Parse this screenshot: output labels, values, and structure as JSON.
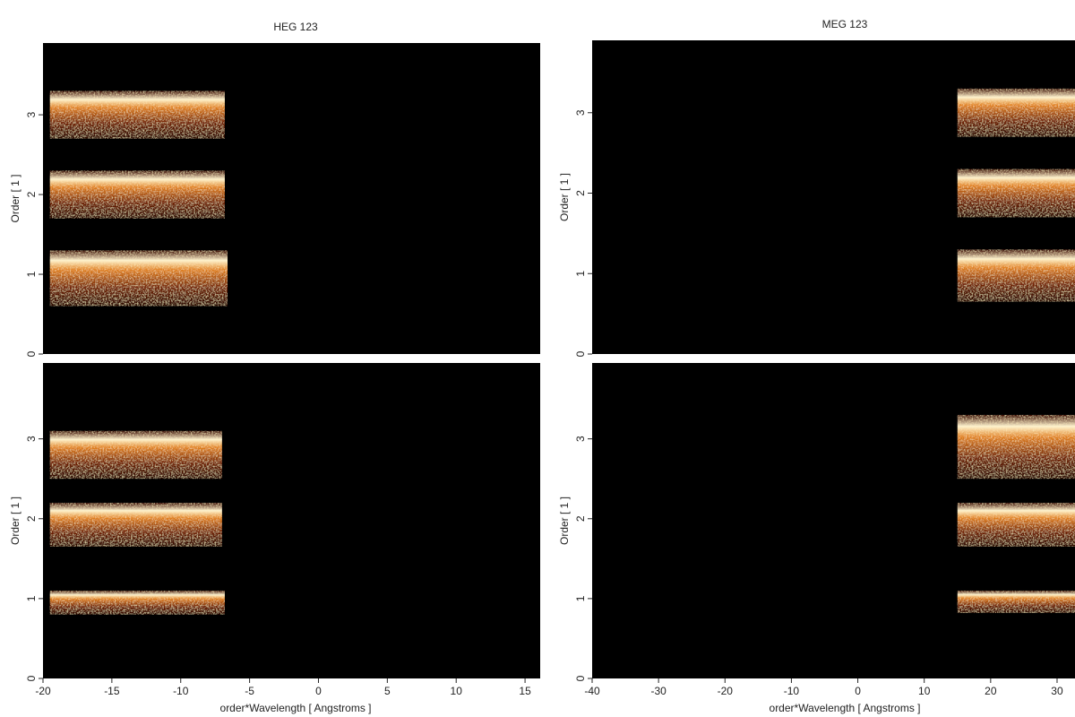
{
  "chart_data": [
    {
      "type": "image",
      "title": "HEG 123",
      "ylabel": "Order [ 1 ]",
      "xlim": [
        -20,
        16.1
      ],
      "ylim": [
        0,
        3.9
      ],
      "yticks": [
        0,
        1,
        2,
        3
      ],
      "regions": [
        {
          "x": [
            -19.5,
            -6.8
          ],
          "y": [
            2.7,
            3.3
          ]
        },
        {
          "x": [
            -19.5,
            -6.8
          ],
          "y": [
            1.7,
            2.3
          ]
        },
        {
          "x": [
            -19.5,
            -6.6
          ],
          "y": [
            0.6,
            1.3
          ]
        }
      ]
    },
    {
      "type": "image",
      "title": "MEG 123",
      "ylabel": "Order [ 1 ]",
      "xlim": [
        -40,
        32.7
      ],
      "ylim": [
        0,
        3.9
      ],
      "yticks": [
        0,
        1,
        2,
        3
      ],
      "regions": [
        {
          "x": [
            15,
            32.7
          ],
          "y": [
            2.7,
            3.3
          ]
        },
        {
          "x": [
            15,
            32.7
          ],
          "y": [
            1.7,
            2.3
          ]
        },
        {
          "x": [
            15,
            32.7
          ],
          "y": [
            0.65,
            1.3
          ]
        }
      ]
    },
    {
      "type": "image",
      "xlabel": "order*Wavelength [ Angstroms ]",
      "ylabel": "Order [ 1 ]",
      "xlim": [
        -20,
        16.1
      ],
      "ylim": [
        0,
        3.95
      ],
      "xticks": [
        -20,
        -15,
        -10,
        -5,
        0,
        5,
        10,
        15
      ],
      "yticks": [
        0,
        1,
        2,
        3
      ],
      "regions": [
        {
          "x": [
            -19.5,
            -7
          ],
          "y": [
            2.5,
            3.1
          ]
        },
        {
          "x": [
            -19.5,
            -7
          ],
          "y": [
            1.65,
            2.2
          ]
        },
        {
          "x": [
            -19.5,
            -6.8
          ],
          "y": [
            0.8,
            1.1
          ]
        }
      ]
    },
    {
      "type": "image",
      "xlabel": "order*Wavelength [ Angstroms ]",
      "ylabel": "Order [ 1 ]",
      "xlim": [
        -40,
        32.7
      ],
      "ylim": [
        0,
        3.95
      ],
      "xticks": [
        -40,
        -30,
        -20,
        -10,
        0,
        10,
        20,
        30
      ],
      "yticks": [
        0,
        1,
        2,
        3
      ],
      "regions": [
        {
          "x": [
            15,
            32.7
          ],
          "y": [
            2.5,
            3.3
          ]
        },
        {
          "x": [
            15,
            32.7
          ],
          "y": [
            1.65,
            2.2
          ]
        },
        {
          "x": [
            15,
            32.7
          ],
          "y": [
            0.82,
            1.1
          ]
        }
      ]
    }
  ]
}
